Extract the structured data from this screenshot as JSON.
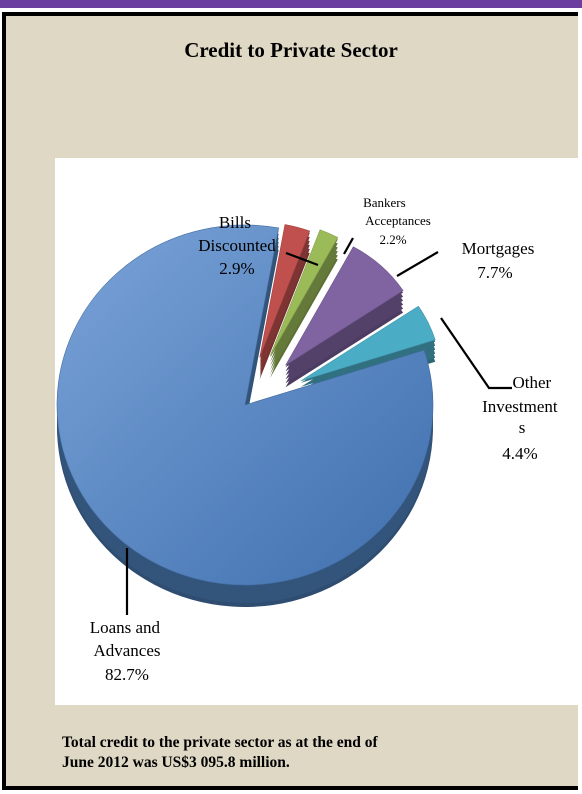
{
  "page": {
    "colors": {
      "border_band": "#6a3fa0",
      "panel_bg": "#dfd8c5"
    }
  },
  "chart_data": {
    "type": "pie",
    "title": "Credit to Private Sector",
    "slices": [
      {
        "label": "Loans and Advances",
        "value": 82.7,
        "value_label": "82.7%",
        "color": "#4f81bd"
      },
      {
        "label": "Bills Discounted",
        "value": 2.9,
        "value_label": "2.9%",
        "color": "#c0504d"
      },
      {
        "label": "Bankers Acceptances",
        "value": 2.2,
        "value_label": "2.2%",
        "color": "#9bbb59"
      },
      {
        "label": "Mortgages",
        "value": 7.7,
        "value_label": "7.7%",
        "color": "#8064a2"
      },
      {
        "label": "Other Investments",
        "value": 4.4,
        "value_label": "4.4%",
        "color": "#4bacc6"
      }
    ],
    "style": "3d-exploded",
    "legend": "none"
  },
  "footnote": {
    "line1": "Total credit to the private sector as at the end of",
    "line2": "June 2012 was US$3 095.8 million."
  }
}
